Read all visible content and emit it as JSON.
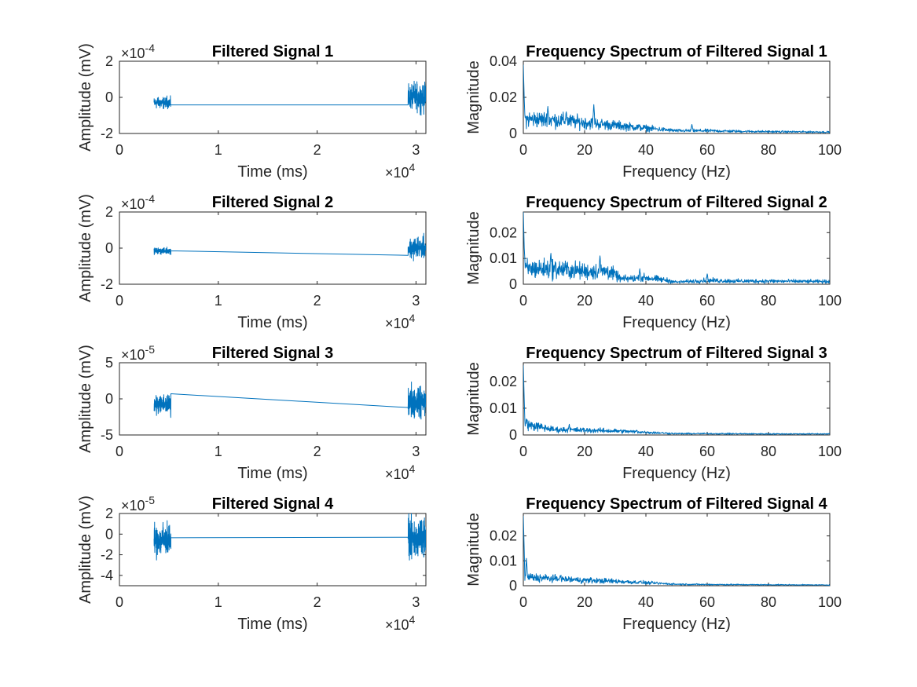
{
  "figure": {
    "background": "#ffffff",
    "line_color": "#0072bd",
    "axis_color": "#262626"
  },
  "chart_data": [
    {
      "type": "line",
      "title": "Filtered Signal 1",
      "xlabel": "Time (ms)",
      "ylabel": "Amplitude (mV)",
      "xlim": [
        0,
        31000
      ],
      "ylim": [
        -0.0002,
        0.0002
      ],
      "xticks": [
        0,
        10000,
        20000,
        30000
      ],
      "xtick_labels": [
        "0",
        "1",
        "2",
        "3"
      ],
      "x_exponent": "×10^4",
      "yticks": [
        -0.0002,
        0,
        0.0002
      ],
      "ytick_labels": [
        "-2",
        "0",
        "2"
      ],
      "y_exponent": "×10^-4",
      "series": [
        {
          "segments": [
            {
              "kind": "noise",
              "x": [
                3500,
                5200
              ],
              "center": -3e-05,
              "amplitude": 5.5e-05
            },
            {
              "kind": "line",
              "x": [
                5200,
                29200
              ],
              "y": [
                -4.2e-05,
                -4.2e-05
              ]
            },
            {
              "kind": "noise",
              "x": [
                29200,
                31000
              ],
              "center": 0,
              "amplitude": 0.00014
            }
          ]
        }
      ]
    },
    {
      "type": "line",
      "title": "Frequency Spectrum of Filtered Signal 1",
      "xlabel": "Frequency (Hz)",
      "ylabel": "Magnitude",
      "xlim": [
        0,
        100
      ],
      "ylim": [
        0,
        0.04
      ],
      "xticks": [
        0,
        20,
        40,
        60,
        80,
        100
      ],
      "xtick_labels": [
        "0",
        "20",
        "40",
        "60",
        "80",
        "100"
      ],
      "yticks": [
        0,
        0.02,
        0.04
      ],
      "ytick_labels": [
        "0",
        "0.02",
        "0.04"
      ],
      "series": [
        {
          "spectrum": {
            "peak": 0.038,
            "knots": [
              [
                0.5,
                0.008
              ],
              [
                10,
                0.0075
              ],
              [
                20,
                0.006
              ],
              [
                30,
                0.0045
              ],
              [
                40,
                0.003
              ],
              [
                45,
                0.0022
              ],
              [
                50,
                0.0015
              ],
              [
                60,
                0.0015
              ],
              [
                70,
                0.0012
              ],
              [
                80,
                0.001
              ],
              [
                100,
                0.0008
              ]
            ],
            "noise": 0.55,
            "spikes": [
              [
                8,
                0.015
              ],
              [
                23,
                0.016
              ],
              [
                14,
                0.012
              ],
              [
                55,
                0.005
              ]
            ]
          }
        }
      ]
    },
    {
      "type": "line",
      "title": "Filtered Signal 2",
      "xlabel": "Time (ms)",
      "ylabel": "Amplitude (mV)",
      "xlim": [
        0,
        31000
      ],
      "ylim": [
        -0.0002,
        0.0002
      ],
      "xticks": [
        0,
        10000,
        20000,
        30000
      ],
      "xtick_labels": [
        "0",
        "1",
        "2",
        "3"
      ],
      "x_exponent": "×10^4",
      "yticks": [
        -0.0002,
        0,
        0.0002
      ],
      "ytick_labels": [
        "-2",
        "0",
        "2"
      ],
      "y_exponent": "×10^-4",
      "series": [
        {
          "segments": [
            {
              "kind": "noise",
              "x": [
                3500,
                5200
              ],
              "center": -1.5e-05,
              "amplitude": 3e-05
            },
            {
              "kind": "line",
              "x": [
                5200,
                29200
              ],
              "y": [
                -1.5e-05,
                -4e-05
              ]
            },
            {
              "kind": "noise",
              "x": [
                29200,
                31000
              ],
              "center": 0,
              "amplitude": 0.00011
            }
          ]
        }
      ]
    },
    {
      "type": "line",
      "title": "Frequency Spectrum of Filtered Signal 2",
      "xlabel": "Frequency (Hz)",
      "ylabel": "Magnitude",
      "xlim": [
        0,
        100
      ],
      "ylim": [
        0,
        0.028
      ],
      "xticks": [
        0,
        20,
        40,
        60,
        80,
        100
      ],
      "xtick_labels": [
        "0",
        "20",
        "40",
        "60",
        "80",
        "100"
      ],
      "yticks": [
        0,
        0.01,
        0.02
      ],
      "ytick_labels": [
        "0",
        "0.01",
        "0.02"
      ],
      "series": [
        {
          "spectrum": {
            "peak": 0.028,
            "knots": [
              [
                0.5,
                0.006
              ],
              [
                10,
                0.006
              ],
              [
                20,
                0.005
              ],
              [
                28,
                0.005
              ],
              [
                32,
                0.002
              ],
              [
                40,
                0.0025
              ],
              [
                47,
                0.0015
              ],
              [
                50,
                0.0008
              ],
              [
                60,
                0.0015
              ],
              [
                70,
                0.0012
              ],
              [
                80,
                0.0012
              ],
              [
                100,
                0.001
              ]
            ],
            "noise": 0.6,
            "spikes": [
              [
                9,
                0.012
              ],
              [
                25,
                0.011
              ],
              [
                38,
                0.006
              ],
              [
                60,
                0.004
              ]
            ]
          }
        }
      ]
    },
    {
      "type": "line",
      "title": "Filtered Signal 3",
      "xlabel": "Time (ms)",
      "ylabel": "Amplitude (mV)",
      "xlim": [
        0,
        31000
      ],
      "ylim": [
        -5e-05,
        5e-05
      ],
      "xticks": [
        0,
        10000,
        20000,
        30000
      ],
      "xtick_labels": [
        "0",
        "1",
        "2",
        "3"
      ],
      "x_exponent": "×10^4",
      "yticks": [
        -5e-05,
        0,
        5e-05
      ],
      "ytick_labels": [
        "-5",
        "0",
        "5"
      ],
      "y_exponent": "×10^-5",
      "series": [
        {
          "segments": [
            {
              "kind": "noise",
              "x": [
                3500,
                5200
              ],
              "center": -8e-06,
              "amplitude": 2.5e-05
            },
            {
              "kind": "line",
              "x": [
                5200,
                29200
              ],
              "y": [
                7e-06,
                -1.2e-05
              ]
            },
            {
              "kind": "noise",
              "x": [
                29200,
                31000
              ],
              "center": -3e-06,
              "amplitude": 4e-05
            }
          ]
        }
      ]
    },
    {
      "type": "line",
      "title": "Frequency Spectrum of Filtered Signal 3",
      "xlabel": "Frequency (Hz)",
      "ylabel": "Magnitude",
      "xlim": [
        0,
        100
      ],
      "ylim": [
        0,
        0.027
      ],
      "xticks": [
        0,
        20,
        40,
        60,
        80,
        100
      ],
      "xtick_labels": [
        "0",
        "20",
        "40",
        "60",
        "80",
        "100"
      ],
      "yticks": [
        0,
        0.01,
        0.02
      ],
      "ytick_labels": [
        "0",
        "0.01",
        "0.02"
      ],
      "series": [
        {
          "spectrum": {
            "peak": 0.026,
            "knots": [
              [
                0.5,
                0.004
              ],
              [
                10,
                0.002
              ],
              [
                20,
                0.0018
              ],
              [
                30,
                0.0015
              ],
              [
                40,
                0.001
              ],
              [
                50,
                0.0005
              ],
              [
                60,
                0.0005
              ],
              [
                80,
                0.0004
              ],
              [
                100,
                0.0004
              ]
            ],
            "noise": 0.5,
            "spikes": [
              [
                1,
                0.006
              ],
              [
                15,
                0.004
              ],
              [
                37,
                0.0018
              ]
            ]
          }
        }
      ]
    },
    {
      "type": "line",
      "title": "Filtered Signal 4",
      "xlabel": "Time (ms)",
      "ylabel": "Amplitude (mV)",
      "xlim": [
        0,
        31000
      ],
      "ylim": [
        -5e-05,
        2e-05
      ],
      "xticks": [
        0,
        10000,
        20000,
        30000
      ],
      "xtick_labels": [
        "0",
        "1",
        "2",
        "3"
      ],
      "x_exponent": "×10^4",
      "yticks": [
        -4e-05,
        -2e-05,
        0,
        2e-05
      ],
      "ytick_labels": [
        "-4",
        "-2",
        "0",
        "2"
      ],
      "y_exponent": "×10^-5",
      "series": [
        {
          "segments": [
            {
              "kind": "noise",
              "x": [
                3500,
                5200
              ],
              "center": -5e-06,
              "amplitude": 3e-05
            },
            {
              "kind": "line",
              "x": [
                5200,
                29200
              ],
              "y": [
                -3.5e-06,
                -3e-06
              ]
            },
            {
              "kind": "noise",
              "x": [
                29200,
                31000
              ],
              "center": -5e-06,
              "amplitude": 3.5e-05
            }
          ]
        }
      ]
    },
    {
      "type": "line",
      "title": "Frequency Spectrum of Filtered Signal 4",
      "xlabel": "Frequency (Hz)",
      "ylabel": "Magnitude",
      "xlim": [
        0,
        100
      ],
      "ylim": [
        0,
        0.029
      ],
      "xticks": [
        0,
        20,
        40,
        60,
        80,
        100
      ],
      "xtick_labels": [
        "0",
        "20",
        "40",
        "60",
        "80",
        "100"
      ],
      "yticks": [
        0,
        0.01,
        0.02
      ],
      "ytick_labels": [
        "0",
        "0.01",
        "0.02"
      ],
      "series": [
        {
          "spectrum": {
            "peak": 0.028,
            "knots": [
              [
                0.5,
                0.0035
              ],
              [
                10,
                0.0028
              ],
              [
                20,
                0.0022
              ],
              [
                30,
                0.0018
              ],
              [
                40,
                0.0012
              ],
              [
                50,
                0.0006
              ],
              [
                60,
                0.0005
              ],
              [
                80,
                0.0004
              ],
              [
                100,
                0.0003
              ]
            ],
            "noise": 0.5,
            "spikes": [
              [
                1,
                0.011
              ],
              [
                12,
                0.004
              ],
              [
                38,
                0.0018
              ]
            ]
          }
        }
      ]
    }
  ]
}
